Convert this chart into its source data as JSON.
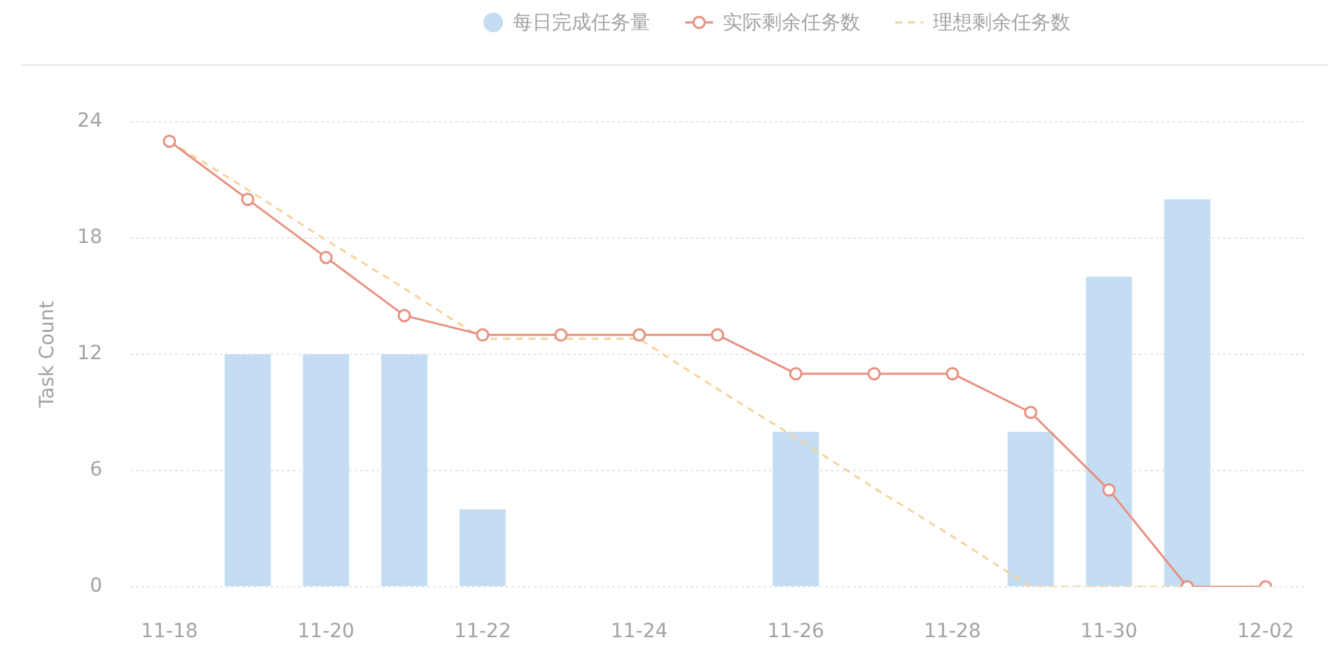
{
  "chart_data": {
    "type": "bar",
    "legend": "top",
    "ylabel": "Task Count",
    "categories": [
      "11-18",
      null,
      "11-20",
      null,
      "11-22",
      null,
      "11-24",
      null,
      "11-26",
      null,
      "11-28",
      null,
      "11-30",
      null,
      "12-02"
    ],
    "series": [
      {
        "name": "每日完成任务量",
        "color": "#c4ddf2",
        "values": [
          0,
          12,
          12,
          12,
          4,
          0,
          0,
          0,
          8,
          0,
          0,
          8,
          16,
          20,
          0
        ]
      },
      {
        "name": "实际剩余任务数",
        "type": "line",
        "color": "#e8907f",
        "marker": "circle",
        "line_style": "solid",
        "values": [
          23,
          20,
          17,
          14,
          13,
          13,
          13,
          13,
          11,
          11,
          11,
          9,
          5,
          0,
          0
        ]
      },
      {
        "name": "理想剩余任务数",
        "type": "line",
        "color": "#f7d39c",
        "marker": "none",
        "line_style": "dashed",
        "values": [
          23,
          20.5,
          17.9,
          15.4,
          12.8,
          12.8,
          12.8,
          10.2,
          7.7,
          5.1,
          2.6,
          0,
          0,
          0,
          0
        ]
      }
    ],
    "ylim": [
      0,
      24
    ],
    "yticks": [
      0,
      6,
      12,
      18,
      24
    ],
    "grid": "y"
  }
}
